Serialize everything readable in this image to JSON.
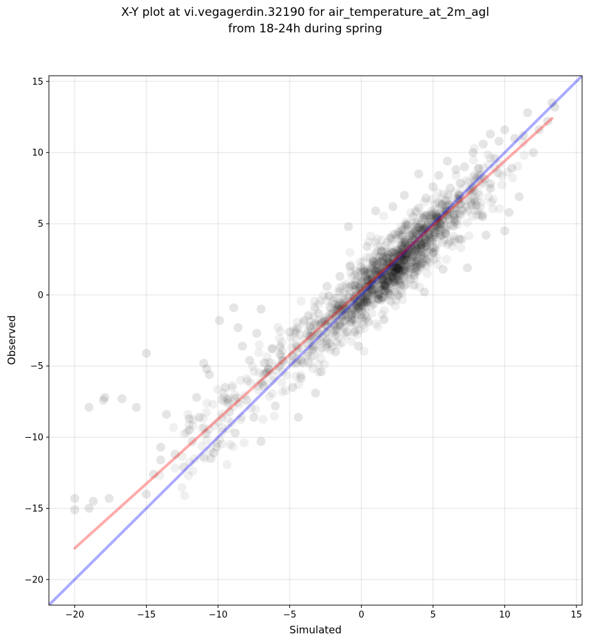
{
  "title_line1": "X-Y plot at vi.vegagerdin.32190 for air_temperature_at_2m_agl",
  "title_line2": "from 18-24h during spring",
  "chart_data": {
    "type": "scatter",
    "xlabel": "Simulated",
    "ylabel": "Observed",
    "xlim": [
      -21.8,
      15.4
    ],
    "ylim": [
      -21.8,
      15.4
    ],
    "xticks": [
      -20,
      -15,
      -10,
      -5,
      0,
      5,
      10,
      15
    ],
    "yticks": [
      -20,
      -15,
      -10,
      -5,
      0,
      5,
      10,
      15
    ],
    "grid": true,
    "point_color": "#000000",
    "point_alpha": 0.1,
    "identity_line": {
      "color": "#0000ff",
      "from": [
        -21.8,
        -21.8
      ],
      "to": [
        15.4,
        15.4
      ]
    },
    "regression_line": {
      "color": "#ff0000",
      "from": [
        -20.0,
        -17.8
      ],
      "to": [
        13.3,
        12.4
      ]
    },
    "points_sample": [
      [
        -20,
        -14.3
      ],
      [
        -20,
        -15.1
      ],
      [
        -19,
        -15
      ],
      [
        -18.7,
        -14.5
      ],
      [
        -17.6,
        -14.3
      ],
      [
        -19,
        -7.9
      ],
      [
        -18,
        -7.4
      ],
      [
        -17.9,
        -7.2
      ],
      [
        -16.7,
        -7.3
      ],
      [
        -15.7,
        -7.9
      ],
      [
        -15,
        -4.1
      ],
      [
        -15,
        -14
      ],
      [
        -14.5,
        -12.6
      ],
      [
        -14,
        -11.6
      ],
      [
        -14,
        -10.7
      ],
      [
        -13.6,
        -8.4
      ],
      [
        -13,
        -11.2
      ],
      [
        -12.4,
        -12.1
      ],
      [
        -12,
        -9.5
      ],
      [
        -12,
        -8.7
      ],
      [
        -11.8,
        -10.3
      ],
      [
        -11.5,
        -7.2
      ],
      [
        -11.3,
        -8.6
      ],
      [
        -11,
        -4.8
      ],
      [
        -10.8,
        -5.2
      ],
      [
        -10.6,
        -5.6
      ],
      [
        -10.5,
        -11.5
      ],
      [
        -10.3,
        -11.1
      ],
      [
        -10.1,
        -10.7
      ],
      [
        -9.9,
        -1.8
      ],
      [
        -9.5,
        -6.5
      ],
      [
        -9.2,
        -8.2
      ],
      [
        -8.9,
        -0.9
      ],
      [
        -8.8,
        -9.7
      ],
      [
        -8.6,
        -2.3
      ],
      [
        -8.3,
        -3.6
      ],
      [
        -8,
        -7.4
      ],
      [
        -7.8,
        -4.6
      ],
      [
        -7.5,
        -8.6
      ],
      [
        -7.3,
        -2.7
      ],
      [
        -7,
        -1.0
      ],
      [
        -7,
        -10.3
      ],
      [
        -6.8,
        -6.4
      ],
      [
        -6.5,
        -5.2
      ],
      [
        -6.2,
        -3.8
      ],
      [
        -6,
        -7.8
      ],
      [
        -5.5,
        -4.6
      ],
      [
        -5,
        -2.6
      ],
      [
        -4.8,
        -6.5
      ],
      [
        -4.5,
        -3.6
      ],
      [
        -4.4,
        -8.6
      ],
      [
        -4,
        -1.8
      ],
      [
        -3.8,
        -4.3
      ],
      [
        -3.5,
        -2.9
      ],
      [
        -3.2,
        -6.9
      ],
      [
        -3,
        -1.3
      ],
      [
        -2.9,
        -3.2
      ],
      [
        -2.8,
        -5.4
      ],
      [
        -2.5,
        -2.1
      ],
      [
        -2.4,
        0.6
      ],
      [
        -2.2,
        -3.4
      ],
      [
        -2,
        -1.3
      ],
      [
        -1.8,
        -4.0
      ],
      [
        -1.5,
        1.3
      ],
      [
        -1.5,
        -2.1
      ],
      [
        -1.2,
        -0.3
      ],
      [
        -1,
        -2.6
      ],
      [
        -0.9,
        4.8
      ],
      [
        -0.8,
        2.0
      ],
      [
        -0.7,
        -1.4
      ],
      [
        -0.5,
        0.7
      ],
      [
        -0.3,
        -0.8
      ],
      [
        -0.2,
        -3.6
      ],
      [
        0,
        0.1
      ],
      [
        0,
        -0.8
      ],
      [
        0.2,
        1.7
      ],
      [
        0.4,
        3.4
      ],
      [
        0.5,
        -1.9
      ],
      [
        0.6,
        0.6
      ],
      [
        0.8,
        2.4
      ],
      [
        1,
        1.4
      ],
      [
        1,
        5.9
      ],
      [
        1.2,
        -0.3
      ],
      [
        1.4,
        3.1
      ],
      [
        1.5,
        1.9
      ],
      [
        1.6,
        0.6
      ],
      [
        1.8,
        2.6
      ],
      [
        2,
        4.0
      ],
      [
        2,
        1.6
      ],
      [
        2.2,
        6.2
      ],
      [
        2.3,
        2.9
      ],
      [
        2.5,
        1.0
      ],
      [
        2.6,
        4.4
      ],
      [
        2.8,
        3.5
      ],
      [
        3,
        2.1
      ],
      [
        3,
        7.0
      ],
      [
        3.2,
        4.9
      ],
      [
        3.4,
        1.1
      ],
      [
        3.6,
        5.5
      ],
      [
        3.8,
        3.2
      ],
      [
        4,
        8.5
      ],
      [
        4,
        6.1
      ],
      [
        4.2,
        4.0
      ],
      [
        4.4,
        0.2
      ],
      [
        4.5,
        6.8
      ],
      [
        4.7,
        5.1
      ],
      [
        5,
        3.0
      ],
      [
        5,
        7.6
      ],
      [
        5.2,
        5.7
      ],
      [
        5.4,
        8.4
      ],
      [
        5.5,
        4.2
      ],
      [
        5.7,
        1.8
      ],
      [
        5.9,
        6.6
      ],
      [
        6,
        9.4
      ],
      [
        6.2,
        7.5
      ],
      [
        6.5,
        5.4
      ],
      [
        6.6,
        8.8
      ],
      [
        6.8,
        7.0
      ],
      [
        7,
        3.9
      ],
      [
        7.2,
        9.0
      ],
      [
        7.4,
        1.9
      ],
      [
        7.6,
        7.4
      ],
      [
        7.8,
        10.0
      ],
      [
        8,
        6.3
      ],
      [
        8.2,
        8.9
      ],
      [
        8.5,
        10.6
      ],
      [
        8.7,
        4.2
      ],
      [
        9,
        11.3
      ],
      [
        9,
        7.8
      ],
      [
        9.3,
        9.6
      ],
      [
        9.6,
        10.8
      ],
      [
        10,
        4.5
      ],
      [
        10,
        11.6
      ],
      [
        10.3,
        5.8
      ],
      [
        10.5,
        8.9
      ],
      [
        10.7,
        11.0
      ],
      [
        11,
        6.9
      ],
      [
        11.3,
        11.2
      ],
      [
        11.6,
        12.8
      ],
      [
        12,
        10.0
      ],
      [
        12.4,
        11.6
      ],
      [
        13,
        12.2
      ],
      [
        13.3,
        13.5
      ],
      [
        13.5,
        13.2
      ]
    ]
  }
}
